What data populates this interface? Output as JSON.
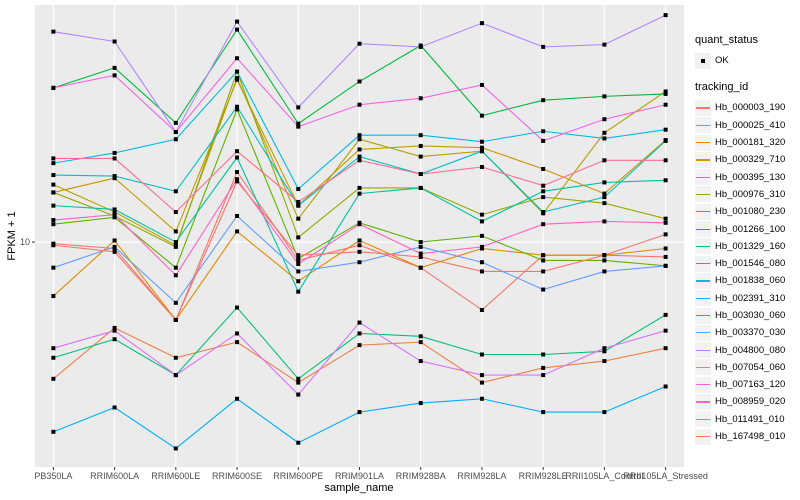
{
  "chart_data": {
    "type": "line",
    "title": "",
    "xlabel": "sample_name",
    "ylabel": "FPKM + 1",
    "y_scale": "log10",
    "ylim": [
      2.4,
      45
    ],
    "y_ticks": [
      {
        "value": 10,
        "label": "10"
      }
    ],
    "grid": true,
    "legend_placement": "right",
    "categories": [
      "PB350LA",
      "RRIM600LA",
      "RRIM600LE",
      "RRIM600SE",
      "RRIM600PE",
      "RRIM901LA",
      "RRIM928BA",
      "RRIM928LA",
      "RRIM928LE",
      "RRII105LA_Control",
      "RRII105LA_Stressed"
    ],
    "legends": [
      {
        "title": "quant_status",
        "entries": [
          {
            "label": "OK",
            "shape": "point"
          }
        ]
      },
      {
        "title": "tracking_id"
      }
    ],
    "series": [
      {
        "name": "Hb_000003_190",
        "color": "#F8766D",
        "values": [
          9.9,
          9.6,
          6.1,
          15.6,
          8.9,
          9.8,
          8.5,
          6.5,
          9.2,
          9.2,
          9.1
        ]
      },
      {
        "name": "Hb_000025_410",
        "color": "#EE8043",
        "values": [
          4.2,
          5.8,
          4.8,
          5.3,
          4.1,
          5.2,
          5.3,
          4.1,
          4.5,
          4.7,
          5.1
        ]
      },
      {
        "name": "Hb_000181_320",
        "color": "#DE8C00",
        "values": [
          7.1,
          10.1,
          6.1,
          10.7,
          7.8,
          10.1,
          8.5,
          9.6,
          9.2,
          9.2,
          9.6
        ]
      },
      {
        "name": "Hb_000329_710",
        "color": "#C99800",
        "values": [
          13.7,
          15.0,
          10.7,
          28.0,
          12.6,
          18.0,
          18.4,
          18.2,
          15.9,
          13.6,
          19.1
        ]
      },
      {
        "name": "Hb_000395_130",
        "color": "#B3A000",
        "values": [
          14.4,
          12.1,
          9.8,
          28.3,
          11.6,
          19.2,
          17.2,
          17.8,
          12.0,
          20.0,
          26.0
        ]
      },
      {
        "name": "Hb_000976_310",
        "color": "#93AA00",
        "values": [
          13.7,
          11.8,
          9.7,
          29.5,
          10.3,
          14.1,
          14.1,
          11.9,
          13.3,
          12.8,
          11.6
        ]
      },
      {
        "name": "Hb_001080_230",
        "color": "#5EB300",
        "values": [
          11.2,
          11.7,
          8.5,
          23.2,
          9.0,
          11.3,
          10.0,
          10.4,
          8.9,
          8.9,
          8.6
        ]
      },
      {
        "name": "Hb_001266_100",
        "color": "#00BA38",
        "values": [
          26.6,
          30.2,
          21.3,
          38.5,
          21.2,
          27.7,
          34.8,
          22.3,
          24.6,
          25.2,
          25.6
        ]
      },
      {
        "name": "Hb_001329_160",
        "color": "#00BF74",
        "values": [
          4.8,
          5.4,
          4.3,
          6.6,
          4.2,
          5.6,
          5.5,
          4.9,
          4.9,
          5.0,
          6.3
        ]
      },
      {
        "name": "Hb_001546_080",
        "color": "#00C19F",
        "values": [
          12.6,
          12.3,
          10.0,
          17.1,
          7.3,
          13.6,
          14.1,
          11.4,
          13.8,
          14.6,
          14.8
        ]
      },
      {
        "name": "Hb_001838_060",
        "color": "#00BFC4",
        "values": [
          15.3,
          15.2,
          13.8,
          23.6,
          12.6,
          17.2,
          15.4,
          17.8,
          12.1,
          13.3,
          19.0
        ]
      },
      {
        "name": "Hb_002391_310",
        "color": "#00B9E3",
        "values": [
          16.5,
          17.6,
          19.2,
          29.5,
          14.0,
          19.7,
          19.7,
          18.9,
          20.2,
          19.3,
          20.4
        ]
      },
      {
        "name": "Hb_003030_060",
        "color": "#00ADFA",
        "values": [
          3.0,
          3.5,
          2.7,
          3.7,
          2.8,
          3.4,
          3.6,
          3.7,
          3.4,
          3.4,
          4.0
        ]
      },
      {
        "name": "Hb_003370_030",
        "color": "#619CFF",
        "values": [
          8.5,
          9.7,
          6.8,
          11.8,
          8.3,
          8.8,
          9.7,
          8.8,
          7.4,
          8.3,
          8.6
        ]
      },
      {
        "name": "Hb_004800_080",
        "color": "#AE87FF",
        "values": [
          38.0,
          35.7,
          20.1,
          40.5,
          23.5,
          35.2,
          34.5,
          40.1,
          34.5,
          35.0,
          42.2
        ]
      },
      {
        "name": "Hb_007054_060",
        "color": "#DB72FB",
        "values": [
          5.1,
          5.7,
          4.3,
          5.6,
          3.8,
          6.0,
          4.7,
          4.3,
          4.3,
          5.1,
          5.7
        ]
      },
      {
        "name": "Hb_007163_120",
        "color": "#F564E3",
        "values": [
          26.6,
          28.8,
          20.1,
          32.1,
          20.8,
          23.9,
          24.9,
          27.1,
          19.0,
          21.8,
          23.9
        ]
      },
      {
        "name": "Hb_008959_020",
        "color": "#FF61C3",
        "values": [
          11.5,
          11.9,
          8.1,
          14.9,
          8.7,
          11.2,
          9.3,
          9.7,
          11.2,
          11.4,
          11.3
        ]
      },
      {
        "name": "Hb_011491_010",
        "color": "#FF6C91",
        "values": [
          17.0,
          17.0,
          12.1,
          17.8,
          12.9,
          16.8,
          15.4,
          16.1,
          14.3,
          16.8,
          16.8
        ]
      },
      {
        "name": "Hb_167498_010",
        "color": "#F8766D",
        "values": [
          9.8,
          9.4,
          6.1,
          14.7,
          9.2,
          9.4,
          9.1,
          8.3,
          8.3,
          9.2,
          10.5
        ]
      }
    ]
  }
}
